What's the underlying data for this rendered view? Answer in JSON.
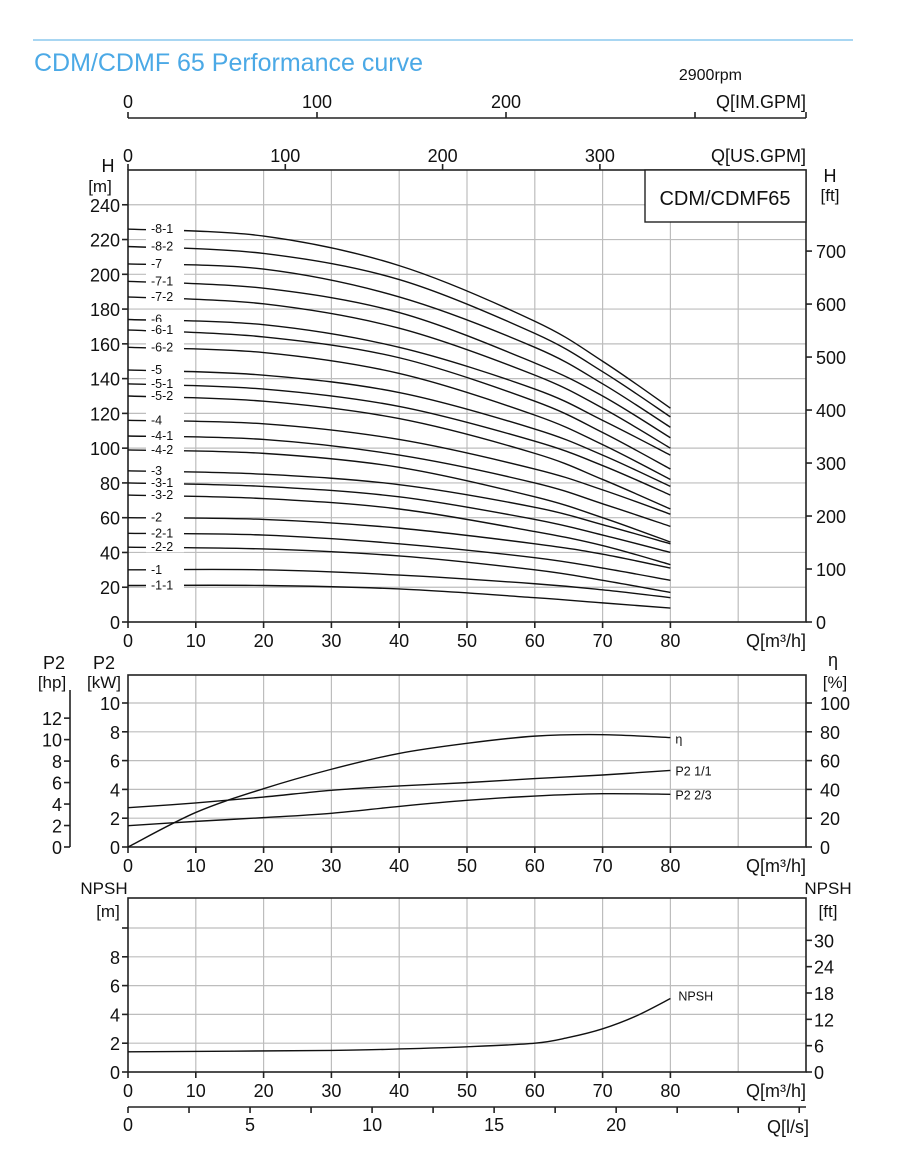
{
  "title": "CDM/CDMF 65 Performance curve",
  "speed": "2900rpm",
  "colors": {
    "title": "#4ba9e6",
    "rule": "#8cc8ee",
    "grid": "#bdbdbd",
    "curve": "#111111"
  },
  "axes": {
    "im_gpm": {
      "label": "Q[IM.GPM]",
      "ticks": [
        0,
        100,
        200
      ]
    },
    "us_gpm": {
      "label": "Q[US.GPM]",
      "ticks": [
        0,
        100,
        200,
        300
      ]
    },
    "ls": {
      "label": "Q[l/s]",
      "ticks": [
        0,
        5,
        10,
        15,
        20
      ]
    }
  },
  "chart_data": [
    {
      "type": "line",
      "title": "",
      "legend_box": "CDM/CDMF65",
      "xlabel": "Q[m³/h]",
      "ylabel": [
        "H",
        "[m]"
      ],
      "y2label": [
        "H",
        "[ft]"
      ],
      "xlim": [
        0,
        100
      ],
      "ylim": [
        0,
        260
      ],
      "xticks": [
        0,
        10,
        20,
        30,
        40,
        50,
        60,
        70,
        80
      ],
      "yticks": [
        0,
        20,
        40,
        60,
        80,
        100,
        120,
        140,
        160,
        180,
        200,
        220,
        240
      ],
      "y2ticks": [
        0,
        100,
        200,
        300,
        400,
        500,
        600,
        700
      ],
      "grid": true,
      "x": [
        0,
        20,
        40,
        60,
        70,
        80
      ],
      "series": [
        {
          "name": "-8-1",
          "values": [
            226,
            222,
            205,
            173,
            150,
            123
          ]
        },
        {
          "name": "-8-2",
          "values": [
            216,
            212,
            197,
            166,
            144,
            118
          ]
        },
        {
          "name": "-7",
          "values": [
            206,
            203,
            187,
            158,
            137,
            112
          ]
        },
        {
          "name": "-7-1",
          "values": [
            196,
            192,
            178,
            149,
            130,
            106
          ]
        },
        {
          "name": "-7-2",
          "values": [
            187,
            183,
            169,
            142,
            123,
            100
          ]
        },
        {
          "name": "-6",
          "values": [
            174,
            171,
            158,
            134,
            116,
            96
          ]
        },
        {
          "name": "-6-1",
          "values": [
            168,
            164,
            152,
            127,
            109,
            88
          ]
        },
        {
          "name": "-6-2",
          "values": [
            158,
            155,
            143,
            119,
            102,
            82
          ]
        },
        {
          "name": "-5",
          "values": [
            145,
            142,
            132,
            111,
            96,
            78
          ]
        },
        {
          "name": "-5-1",
          "values": [
            137,
            134,
            124,
            104,
            90,
            73
          ]
        },
        {
          "name": "-5-2",
          "values": [
            130,
            127,
            117,
            97,
            82,
            65
          ]
        },
        {
          "name": "-4",
          "values": [
            116,
            114,
            105,
            88,
            76,
            62
          ]
        },
        {
          "name": "-4-1",
          "values": [
            107,
            105,
            96,
            80,
            68,
            55
          ]
        },
        {
          "name": "-4-2",
          "values": [
            99,
            97,
            89,
            72,
            60,
            46
          ]
        },
        {
          "name": "-3",
          "values": [
            87,
            85,
            79,
            66,
            56,
            45
          ]
        },
        {
          "name": "-3-1",
          "values": [
            80,
            78,
            72,
            59,
            50,
            40
          ]
        },
        {
          "name": "-3-2",
          "values": [
            73,
            71,
            65,
            52,
            44,
            33
          ]
        },
        {
          "name": "-2",
          "values": [
            60,
            59,
            54,
            45,
            39,
            31
          ]
        },
        {
          "name": "-2-1",
          "values": [
            51,
            50,
            45,
            37,
            31,
            24
          ]
        },
        {
          "name": "-2-2",
          "values": [
            43,
            42,
            38,
            30,
            24,
            17
          ]
        },
        {
          "name": "-1",
          "values": [
            30,
            30,
            27,
            22,
            18.5,
            14
          ]
        },
        {
          "name": "-1-1",
          "values": [
            21,
            21,
            19,
            14,
            11,
            8
          ]
        }
      ]
    },
    {
      "type": "line",
      "title": "",
      "xlabel": "Q[m³/h]",
      "ylabel": [
        "P2",
        "[kW]"
      ],
      "ylabel_hp": [
        "P2",
        "[hp]"
      ],
      "y2label": [
        "η",
        "[%]"
      ],
      "xlim": [
        0,
        100
      ],
      "ylim": [
        0,
        12
      ],
      "xticks": [
        0,
        10,
        20,
        30,
        40,
        50,
        60,
        70,
        80
      ],
      "yticks": [
        0,
        2,
        4,
        6,
        8,
        10
      ],
      "hpticks": [
        0,
        2,
        4,
        6,
        8,
        10,
        12
      ],
      "y2ticks": [
        0,
        20,
        40,
        60,
        80,
        100
      ],
      "grid": true,
      "x": [
        0,
        10,
        20,
        30,
        40,
        50,
        60,
        70,
        80
      ],
      "series": [
        {
          "name": "η",
          "axis": "percent",
          "values": [
            0,
            24,
            40.5,
            54,
            65,
            72,
            77,
            78,
            76
          ]
        },
        {
          "name": "P2 1/1",
          "axis": "kW",
          "values": [
            2.73,
            3.06,
            3.47,
            3.94,
            4.24,
            4.47,
            4.75,
            5.0,
            5.32
          ]
        },
        {
          "name": "P2 2/3",
          "axis": "kW",
          "values": [
            1.48,
            1.78,
            2.04,
            2.34,
            2.82,
            3.24,
            3.54,
            3.7,
            3.66
          ]
        }
      ]
    },
    {
      "type": "line",
      "title": "",
      "xlabel": "Q[m³/h]",
      "ylabel": [
        "NPSH",
        "[m]"
      ],
      "y2label": [
        "NPSH",
        "[ft]"
      ],
      "xlim": [
        0,
        100
      ],
      "ylim": [
        0,
        12
      ],
      "xticks": [
        0,
        10,
        20,
        30,
        40,
        50,
        60,
        70,
        80
      ],
      "yticks": [
        0,
        2,
        4,
        6,
        8
      ],
      "y2ticks": [
        0,
        6,
        12,
        18,
        24,
        30
      ],
      "grid": true,
      "x": [
        0,
        30,
        40,
        50,
        60,
        65,
        70,
        75,
        80
      ],
      "series": [
        {
          "name": "NPSH",
          "values": [
            1.4,
            1.5,
            1.6,
            1.75,
            2.0,
            2.4,
            3.0,
            3.9,
            5.1
          ]
        }
      ]
    }
  ]
}
